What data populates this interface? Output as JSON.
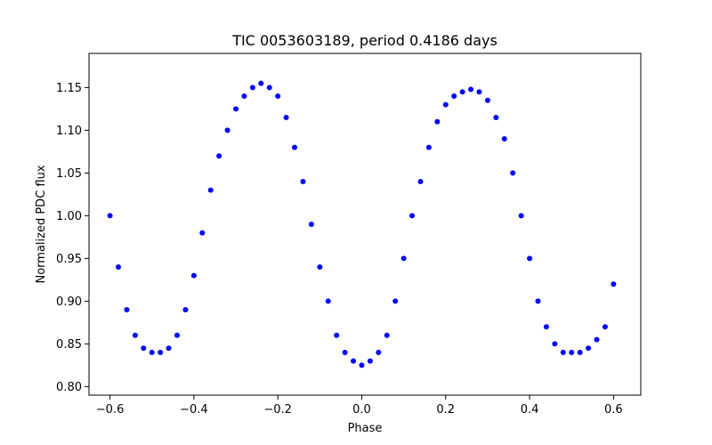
{
  "chart_data": {
    "type": "scatter",
    "title": "TIC 0053603189, period 0.4186 days",
    "xlabel": "Phase",
    "ylabel": "Normalized PDC flux",
    "xlim": [
      -0.65,
      0.665
    ],
    "ylim": [
      0.79,
      1.19
    ],
    "grid": false,
    "marker_color": "#0000ff",
    "xticks": [
      -0.6,
      -0.4,
      -0.2,
      0.0,
      0.2,
      0.4,
      0.6
    ],
    "xtick_labels": [
      "−0.6",
      "−0.4",
      "−0.2",
      "0.0",
      "0.2",
      "0.4",
      "0.6"
    ],
    "yticks": [
      0.8,
      0.85,
      0.9,
      0.95,
      1.0,
      1.05,
      1.1,
      1.15
    ],
    "ytick_labels": [
      "0.80",
      "0.85",
      "0.90",
      "0.95",
      "1.00",
      "1.05",
      "1.10",
      "1.15"
    ],
    "series": [
      {
        "x": [
          -0.6,
          -0.58,
          -0.56,
          -0.54,
          -0.52,
          -0.5,
          -0.48,
          -0.46,
          -0.44,
          -0.42,
          -0.4,
          -0.38,
          -0.36,
          -0.34,
          -0.32,
          -0.3,
          -0.28,
          -0.26,
          -0.24,
          -0.22,
          -0.2,
          -0.18,
          -0.16,
          -0.14,
          -0.12,
          -0.1,
          -0.08,
          -0.06,
          -0.04,
          -0.02,
          0.0,
          0.02,
          0.04,
          0.06,
          0.08,
          0.1,
          0.12,
          0.14,
          0.16,
          0.18,
          0.2,
          0.22,
          0.24,
          0.26,
          0.28,
          0.3,
          0.32,
          0.34,
          0.36,
          0.38,
          0.4,
          0.42,
          0.44,
          0.46,
          0.48,
          0.5,
          0.52,
          0.54,
          0.56,
          0.58,
          0.6
        ],
        "values": [
          1.0,
          0.94,
          0.89,
          0.86,
          0.845,
          0.84,
          0.84,
          0.845,
          0.86,
          0.89,
          0.93,
          0.98,
          1.03,
          1.07,
          1.1,
          1.125,
          1.14,
          1.15,
          1.155,
          1.15,
          1.14,
          1.115,
          1.08,
          1.04,
          0.99,
          0.94,
          0.9,
          0.86,
          0.84,
          0.83,
          0.825,
          0.83,
          0.84,
          0.86,
          0.9,
          0.95,
          1.0,
          1.04,
          1.08,
          1.11,
          1.13,
          1.14,
          1.145,
          1.148,
          1.145,
          1.135,
          1.115,
          1.09,
          1.05,
          1.0,
          0.95,
          0.9,
          0.87,
          0.85,
          0.84,
          0.84,
          0.84,
          0.845,
          0.855,
          0.87,
          0.92
        ]
      }
    ]
  }
}
